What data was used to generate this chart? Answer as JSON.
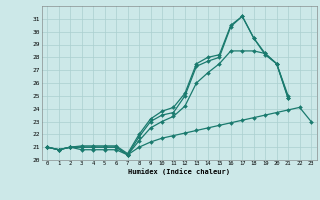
{
  "x": [
    0,
    1,
    2,
    3,
    4,
    5,
    6,
    7,
    8,
    9,
    10,
    11,
    12,
    13,
    14,
    15,
    16,
    17,
    18,
    19,
    20,
    21,
    22,
    23
  ],
  "line_upper1": [
    21,
    20.8,
    21,
    21.1,
    21.1,
    21.1,
    21.1,
    20.5,
    22.0,
    23.2,
    23.8,
    24.1,
    25.2,
    27.5,
    28.0,
    28.2,
    30.5,
    31.2,
    29.5,
    28.3,
    27.5,
    25.0,
    null,
    null
  ],
  "line_upper2": [
    21,
    20.8,
    21,
    21.0,
    21.0,
    21.0,
    21.0,
    20.4,
    21.8,
    23.0,
    23.5,
    23.7,
    25.0,
    27.3,
    27.7,
    28.0,
    30.4,
    31.2,
    29.5,
    28.2,
    27.5,
    24.8,
    null,
    null
  ],
  "line_mid": [
    21,
    20.8,
    21,
    21.0,
    21.0,
    21.0,
    21.0,
    20.4,
    21.5,
    22.5,
    23.0,
    23.4,
    24.2,
    26.0,
    26.8,
    27.5,
    28.5,
    28.5,
    28.5,
    28.3,
    27.5,
    24.8,
    null,
    null
  ],
  "line_low": [
    21,
    20.8,
    21,
    20.8,
    20.8,
    20.8,
    20.8,
    20.4,
    21.0,
    21.4,
    21.7,
    21.9,
    22.1,
    22.3,
    22.5,
    22.7,
    22.9,
    23.1,
    23.3,
    23.5,
    23.7,
    23.9,
    24.1,
    23.0
  ],
  "xlim": [
    -0.5,
    23.5
  ],
  "ylim": [
    20,
    32
  ],
  "yticks": [
    20,
    21,
    22,
    23,
    24,
    25,
    26,
    27,
    28,
    29,
    30,
    31
  ],
  "xticks": [
    0,
    1,
    2,
    3,
    4,
    5,
    6,
    7,
    8,
    9,
    10,
    11,
    12,
    13,
    14,
    15,
    16,
    17,
    18,
    19,
    20,
    21,
    22,
    23
  ],
  "xlabel": "Humidex (Indice chaleur)",
  "bg_color": "#cce8e8",
  "grid_color": "#aacfcf",
  "line_color": "#1a7a6e",
  "markersize": 2.0,
  "linewidth": 0.9
}
